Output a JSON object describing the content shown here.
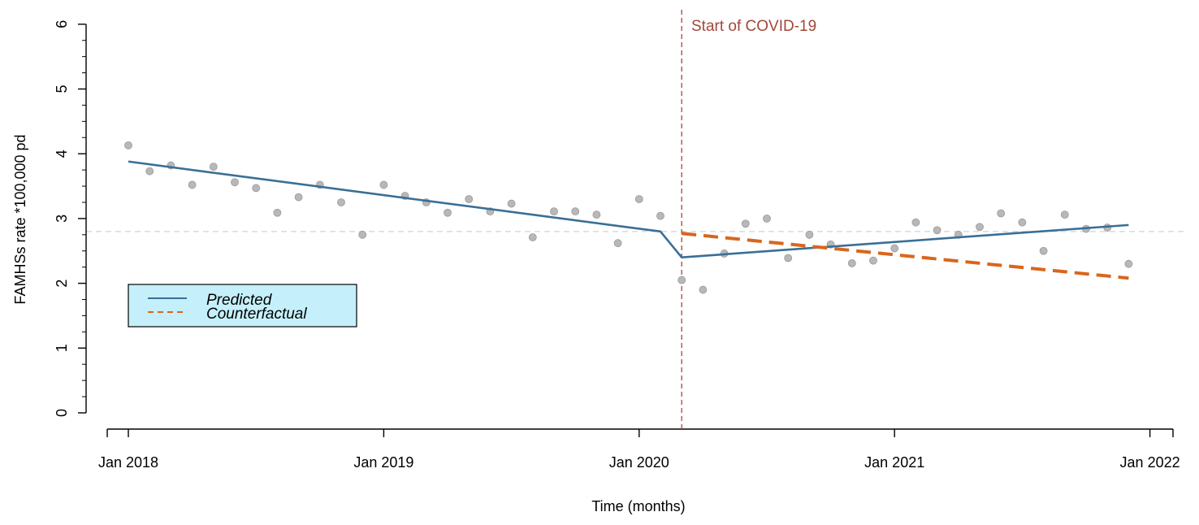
{
  "chart_data": {
    "type": "line",
    "title": "",
    "xlabel": "Time (months)",
    "ylabel": "FAMHSs rate *100,000 pd",
    "ylim": [
      0,
      6
    ],
    "yticks": [
      0,
      1,
      2,
      3,
      4,
      5,
      6
    ],
    "x_ticks": [
      {
        "label": "Jan 2018",
        "month": 0
      },
      {
        "label": "Jan 2019",
        "month": 12
      },
      {
        "label": "Jan 2020",
        "month": 24
      },
      {
        "label": "Jan 2021",
        "month": 36
      },
      {
        "label": "Jan 2022",
        "month": 48
      }
    ],
    "xlim_months": [
      -1,
      49
    ],
    "observed": {
      "name": "Observed",
      "months": [
        0,
        1,
        2,
        3,
        4,
        5,
        6,
        7,
        8,
        9,
        10,
        11,
        12,
        13,
        14,
        15,
        16,
        17,
        18,
        19,
        20,
        21,
        22,
        23,
        24,
        25,
        26,
        27,
        28,
        29,
        30,
        31,
        32,
        33,
        34,
        35,
        36,
        37,
        38,
        39,
        40,
        41,
        42,
        43,
        44,
        45,
        46,
        47
      ],
      "values": [
        4.13,
        3.73,
        3.82,
        3.52,
        3.8,
        3.56,
        3.47,
        3.09,
        3.33,
        3.52,
        3.25,
        2.75,
        3.52,
        3.35,
        3.25,
        3.09,
        3.3,
        3.11,
        3.23,
        2.71,
        3.11,
        3.11,
        3.06,
        2.62,
        3.3,
        3.04,
        2.05,
        1.9,
        2.46,
        2.92,
        3.0,
        2.39,
        2.75,
        2.6,
        2.31,
        2.35,
        2.54,
        2.94,
        2.82,
        2.75,
        2.87,
        3.08,
        2.94,
        2.5,
        3.06,
        2.84,
        2.86,
        2.3
      ]
    },
    "series": [
      {
        "name": "Predicted",
        "style": "solid",
        "color": "#3a6f96",
        "months": [
          0,
          25,
          26,
          47
        ],
        "values": [
          3.88,
          2.8,
          2.4,
          2.9
        ]
      },
      {
        "name": "Counterfactual",
        "style": "dashed",
        "color": "#d9661c",
        "months": [
          26,
          47
        ],
        "values": [
          2.77,
          2.08
        ]
      }
    ],
    "reference_line": {
      "y": 2.8,
      "style": "dashed",
      "color": "#c8d6df"
    },
    "intervention": {
      "month": 26,
      "label": "Start of COVID-19",
      "color": "#a0483a"
    },
    "legend": {
      "position": "left",
      "background": "#c5f0fb",
      "entries": [
        {
          "label": "Predicted",
          "style": "solid",
          "color": "#3a6f96"
        },
        {
          "label": "Counterfactual",
          "style": "dashed",
          "color": "#d9661c"
        }
      ]
    },
    "point_color": "#b8b8b8"
  }
}
